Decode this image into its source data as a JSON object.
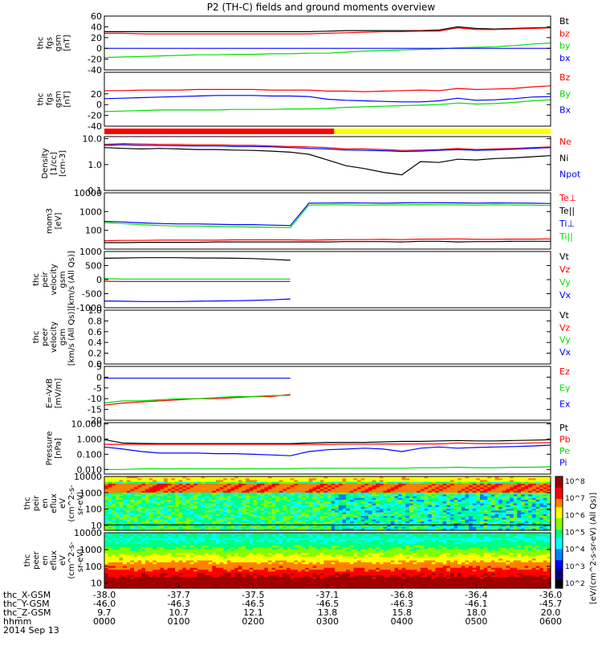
{
  "title": "P2 (TH-C) fields and ground moments overview",
  "colors": {
    "black": "#000000",
    "red": "#ff0000",
    "green": "#00dd00",
    "blue": "#0000ff",
    "yellow": "#ffff00"
  },
  "chart_data": [
    {
      "type": "line",
      "ylabel": [
        "thc",
        "fgs",
        "gsm",
        "[nT]"
      ],
      "ylim": [
        -40,
        60
      ],
      "yticks": [
        "60",
        "40",
        "20",
        "0",
        "-20",
        "-40"
      ],
      "series": [
        {
          "name": "Bt",
          "color": "black",
          "values": [
            31,
            31,
            31,
            31,
            31,
            31,
            31,
            31,
            31,
            31,
            31,
            31,
            32,
            33,
            33,
            33,
            33,
            33,
            34,
            40,
            37,
            36,
            37,
            38,
            39
          ]
        },
        {
          "name": "bz",
          "color": "red",
          "values": [
            28,
            28,
            27,
            27,
            27,
            27,
            27,
            27,
            27,
            27,
            27,
            27,
            28,
            29,
            30,
            31,
            31,
            32,
            32,
            38,
            35,
            35,
            36,
            37,
            38
          ]
        },
        {
          "name": "by",
          "color": "green",
          "values": [
            -17,
            -16,
            -15,
            -14,
            -13,
            -12,
            -12,
            -11,
            -11,
            -10,
            -10,
            -9,
            -9,
            -7,
            -5,
            -4,
            -3,
            -2,
            -1,
            1,
            2,
            3,
            5,
            8,
            10
          ]
        },
        {
          "name": "bx",
          "color": "blue",
          "values": [
            0,
            0,
            0,
            0,
            0,
            0,
            0,
            0,
            0,
            0,
            0,
            0,
            0,
            0,
            0,
            0,
            0,
            0,
            0,
            0,
            0,
            0,
            0,
            0,
            0
          ]
        }
      ]
    },
    {
      "type": "line",
      "ylabel": [
        "thc",
        "fgs",
        "gsm",
        "[nT]"
      ],
      "ylim": [
        -40,
        60
      ],
      "yticks": [
        "20",
        "0",
        "-20",
        "-40"
      ],
      "series": [
        {
          "name": "Bz",
          "color": "red",
          "values": [
            26,
            26,
            27,
            27,
            27,
            28,
            28,
            28,
            28,
            27,
            27,
            27,
            25,
            25,
            24,
            25,
            26,
            27,
            26,
            30,
            28,
            29,
            30,
            33,
            35
          ]
        },
        {
          "name": "By",
          "color": "green",
          "values": [
            -13,
            -12,
            -11,
            -10,
            -10,
            -10,
            -10,
            -9,
            -9,
            -9,
            -8,
            -8,
            -7,
            -5,
            -4,
            -3,
            -2,
            -1,
            0,
            3,
            1,
            2,
            4,
            7,
            9
          ]
        },
        {
          "name": "Bx",
          "color": "blue",
          "values": [
            11,
            12,
            13,
            14,
            15,
            16,
            17,
            17,
            17,
            16,
            16,
            15,
            10,
            8,
            7,
            6,
            5,
            5,
            7,
            12,
            8,
            9,
            11,
            14,
            15
          ]
        }
      ]
    },
    {
      "type": "line",
      "ylabel": [
        "Density",
        "[1/cc]",
        "[cm-3]"
      ],
      "yscale": "log",
      "ylim": [
        0.1,
        12
      ],
      "yticks": [
        "10.0",
        "1.0",
        "0.1"
      ],
      "series": [
        {
          "name": "Ne",
          "color": "red",
          "values": [
            6.0,
            6.5,
            6.2,
            6.0,
            6.0,
            5.8,
            5.8,
            5.5,
            5.5,
            5.2,
            5.0,
            4.8,
            4.5,
            4.0,
            4.0,
            3.8,
            3.5,
            3.6,
            3.8,
            4.2,
            3.8,
            4.0,
            4.2,
            4.5,
            4.8
          ]
        },
        {
          "name": "Ni",
          "color": "black",
          "values": [
            4.5,
            4.2,
            4.0,
            4.2,
            4.0,
            3.8,
            3.8,
            3.6,
            3.5,
            3.3,
            3.0,
            2.5,
            1.5,
            0.9,
            0.7,
            0.5,
            0.4,
            1.3,
            1.2,
            1.6,
            1.5,
            1.7,
            1.8,
            2.0,
            2.2
          ]
        },
        {
          "name": "Npot",
          "color": "blue",
          "values": [
            5.5,
            5.8,
            5.5,
            5.4,
            5.3,
            5.2,
            5.2,
            5.0,
            5.0,
            4.8,
            4.5,
            4.2,
            4.0,
            3.6,
            3.5,
            3.4,
            3.2,
            3.3,
            3.5,
            3.8,
            3.5,
            3.7,
            3.9,
            4.2,
            4.5
          ]
        }
      ]
    },
    {
      "type": "line",
      "ylabel": [
        "mom3",
        "[eV]"
      ],
      "yscale": "log",
      "ylim": [
        10,
        10000
      ],
      "yticks": [
        "10000",
        "1000",
        "100"
      ],
      "series": [
        {
          "name": "Te⊥",
          "color": "red",
          "values": [
            28,
            29,
            29,
            30,
            30,
            30,
            30,
            31,
            31,
            31,
            31,
            30,
            31,
            32,
            32,
            33,
            32,
            34,
            34,
            35,
            33,
            33,
            34,
            34,
            35
          ]
        },
        {
          "name": "Te||",
          "color": "black",
          "values": [
            22,
            22,
            23,
            23,
            23,
            23,
            24,
            24,
            24,
            24,
            24,
            24,
            24,
            25,
            25,
            25,
            24,
            26,
            26,
            24,
            25,
            25,
            26,
            26,
            26
          ]
        },
        {
          "name": "Ti⊥",
          "color": "blue",
          "values": [
            300,
            280,
            250,
            230,
            220,
            220,
            210,
            200,
            200,
            190,
            180,
            2800,
            2850,
            2900,
            2850,
            2800,
            2900,
            3000,
            2950,
            2900,
            2800,
            2900,
            2850,
            2800,
            2700
          ]
        },
        {
          "name": "Ti||",
          "color": "green",
          "values": [
            260,
            230,
            200,
            180,
            170,
            170,
            160,
            155,
            150,
            145,
            140,
            2200,
            2300,
            2300,
            2200,
            2250,
            2300,
            2400,
            2350,
            2300,
            2200,
            2300,
            2250,
            2200,
            2100
          ]
        }
      ]
    },
    {
      "type": "line",
      "ylabel": [
        "thc",
        "peir",
        "velocity",
        "gsm",
        "[km/s (All Qs)]"
      ],
      "ylim": [
        -1000,
        1000
      ],
      "yticks": [
        "1000",
        "500",
        "0",
        "-500",
        "-1000"
      ],
      "series": [
        {
          "name": "Vt",
          "color": "black",
          "values": [
            760,
            770,
            780,
            780,
            780,
            770,
            770,
            760,
            750,
            720,
            690,
            null,
            null,
            null,
            null,
            null,
            null,
            null,
            null,
            null,
            null,
            null,
            null,
            null,
            null
          ]
        },
        {
          "name": "Vz",
          "color": "red",
          "values": [
            -60,
            -70,
            -70,
            -70,
            -70,
            -70,
            -70,
            -70,
            -70,
            -70,
            -70,
            null,
            null,
            null,
            null,
            null,
            null,
            null,
            null,
            null,
            null,
            null,
            null,
            null,
            null
          ]
        },
        {
          "name": "Vy",
          "color": "green",
          "values": [
            30,
            20,
            20,
            20,
            20,
            20,
            20,
            20,
            20,
            20,
            20,
            null,
            null,
            null,
            null,
            null,
            null,
            null,
            null,
            null,
            null,
            null,
            null,
            null,
            null
          ]
        },
        {
          "name": "Vx",
          "color": "blue",
          "values": [
            -760,
            -770,
            -780,
            -780,
            -780,
            -770,
            -760,
            -750,
            -740,
            -720,
            -690,
            null,
            null,
            null,
            null,
            null,
            null,
            null,
            null,
            null,
            null,
            null,
            null,
            null,
            null
          ]
        }
      ]
    },
    {
      "type": "line",
      "ylabel": [
        "thc",
        "peer",
        "velocity",
        "gsm",
        "[km/s (All Qs)]"
      ],
      "ylim": [
        0,
        1
      ],
      "yticks": [
        "1.0",
        "0.8",
        "0.6",
        "0.4",
        "0.2",
        "0.0"
      ],
      "series": [
        {
          "name": "Vt",
          "color": "black",
          "values": []
        },
        {
          "name": "Vz",
          "color": "red",
          "values": []
        },
        {
          "name": "Vy",
          "color": "green",
          "values": []
        },
        {
          "name": "Vx",
          "color": "blue",
          "values": []
        }
      ]
    },
    {
      "type": "line",
      "ylabel": [
        "E=-VxB",
        "[mV/m]"
      ],
      "ylim": [
        -20,
        5
      ],
      "yticks": [
        "5",
        "0",
        "-5",
        "-10",
        "-15",
        "-20"
      ],
      "series": [
        {
          "name": "Ez",
          "color": "red",
          "values": [
            -13,
            -12,
            -11.5,
            -11,
            -10.5,
            -10,
            -10,
            -9.5,
            -9,
            -9,
            -8,
            null,
            null,
            null,
            null,
            null,
            null,
            null,
            null,
            null,
            null,
            null,
            null,
            null,
            null
          ]
        },
        {
          "name": "Ey",
          "color": "green",
          "values": [
            -12,
            -11,
            -11,
            -10.5,
            -10,
            -10,
            -9.5,
            -9,
            -9,
            -8.5,
            -8.5,
            null,
            null,
            null,
            null,
            null,
            null,
            null,
            null,
            null,
            null,
            null,
            null,
            null,
            null
          ]
        },
        {
          "name": "Ex",
          "color": "blue",
          "values": [
            -0.5,
            -0.5,
            -0.5,
            -0.5,
            -0.5,
            -0.5,
            -0.5,
            -0.5,
            -0.5,
            -0.5,
            -0.5,
            null,
            null,
            null,
            null,
            null,
            null,
            null,
            null,
            null,
            null,
            null,
            null,
            null,
            null
          ]
        }
      ]
    },
    {
      "type": "line",
      "ylabel": [
        "Pressure",
        "[nPa]"
      ],
      "yscale": "log",
      "ylim": [
        0.005,
        12
      ],
      "yticks": [
        "10.000",
        "1.000",
        "0.100",
        "0.010"
      ],
      "series": [
        {
          "name": "Pt",
          "color": "black",
          "values": [
            0.9,
            0.55,
            0.52,
            0.5,
            0.5,
            0.5,
            0.5,
            0.5,
            0.5,
            0.5,
            0.5,
            0.55,
            0.6,
            0.6,
            0.6,
            0.65,
            0.7,
            0.7,
            0.75,
            0.8,
            0.75,
            0.75,
            0.8,
            0.85,
            0.9
          ]
        },
        {
          "name": "Pb",
          "color": "red",
          "values": [
            0.45,
            0.45,
            0.45,
            0.45,
            0.45,
            0.45,
            0.45,
            0.45,
            0.45,
            0.45,
            0.45,
            0.45,
            0.45,
            0.46,
            0.46,
            0.47,
            0.47,
            0.48,
            0.48,
            0.55,
            0.5,
            0.5,
            0.52,
            0.55,
            0.58
          ]
        },
        {
          "name": "Pe",
          "color": "green",
          "values": [
            0.01,
            0.01,
            0.011,
            0.011,
            0.011,
            0.011,
            0.011,
            0.011,
            0.011,
            0.011,
            0.011,
            0.012,
            0.012,
            0.012,
            0.012,
            0.012,
            0.012,
            0.013,
            0.013,
            0.014,
            0.013,
            0.013,
            0.014,
            0.014,
            0.015
          ]
        },
        {
          "name": "Pi",
          "color": "blue",
          "values": [
            0.3,
            0.22,
            0.15,
            0.12,
            0.12,
            0.12,
            0.11,
            0.11,
            0.1,
            0.09,
            0.08,
            0.15,
            0.2,
            0.22,
            0.25,
            0.22,
            0.15,
            0.25,
            0.3,
            0.25,
            0.28,
            0.3,
            0.32,
            0.35,
            0.4
          ]
        }
      ]
    },
    {
      "type": "heatmap",
      "ylabel": [
        "thc",
        "peir",
        "en",
        "eflux",
        "eV",
        "(cm^2-s-",
        "sr-eV)"
      ],
      "yscale": "log",
      "ylim": [
        5,
        10000
      ],
      "yticks": [
        "10000",
        "1000",
        "100",
        "10"
      ]
    },
    {
      "type": "heatmap",
      "ylabel": [
        "thc",
        "peer",
        "en",
        "eflux",
        "eV",
        "(cm^2-s-",
        "sr-eV)"
      ],
      "yscale": "log",
      "ylim": [
        5,
        10000
      ],
      "yticks": [
        "10000",
        "1000",
        "100",
        "10"
      ]
    }
  ],
  "colorbar": {
    "label": "[eV/(cm^2-s-sr-eV) (All Qs)]",
    "ticks": [
      "10^8",
      "10^7",
      "10^6",
      "10^5",
      "10^4",
      "10^3",
      "10^2"
    ]
  },
  "mode_bar": [
    {
      "color": "red",
      "from": 0.0,
      "to": 0.515
    },
    {
      "color": "yellow",
      "from": 0.515,
      "to": 1.0
    }
  ],
  "x_axis": {
    "row_labels": [
      "thc_X-GSM",
      "thc_Y-GSM",
      "thc_Z-GSM",
      "hhmm",
      "2014 Sep 13"
    ],
    "columns": [
      [
        "-38.0",
        "-46.0",
        "9.7",
        "0000"
      ],
      [
        "-37.7",
        "-46.3",
        "10.7",
        "0100"
      ],
      [
        "-37.5",
        "-46.5",
        "12.1",
        "0200"
      ],
      [
        "-37.1",
        "-46.5",
        "13.8",
        "0300"
      ],
      [
        "-36.8",
        "-46.3",
        "15.8",
        "0400"
      ],
      [
        "-36.4",
        "-46.1",
        "18.0",
        "0500"
      ],
      [
        "-36.0",
        "-45.7",
        "20.0",
        "0600"
      ]
    ]
  }
}
